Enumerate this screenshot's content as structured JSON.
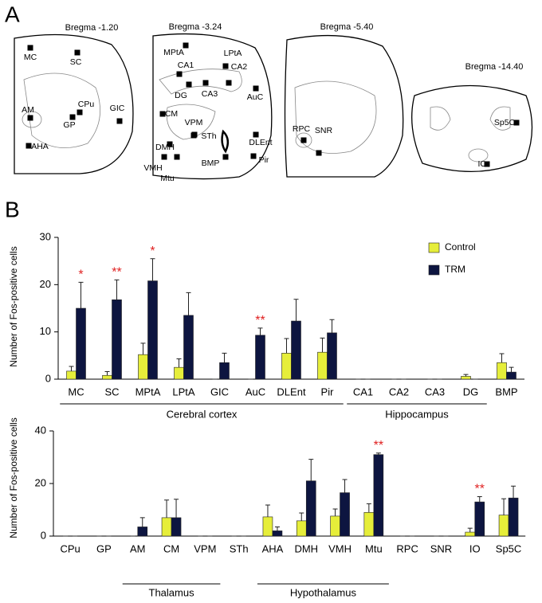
{
  "panel_labels": [
    "A",
    "B"
  ],
  "atlas": [
    {
      "title": "Bregma -1.20",
      "regions": [
        "MC",
        "SC",
        "AM",
        "CPu",
        "GP",
        "GIC",
        "AHA"
      ]
    },
    {
      "title": "Bregma -3.24",
      "regions": [
        "MPtA",
        "LPtA",
        "CA1",
        "CA2",
        "DG",
        "CA3",
        "AuC",
        "CM",
        "VPM",
        "STh",
        "DMH",
        "DLEnt",
        "VMH",
        "BMP",
        "Pir",
        "Mtu"
      ]
    },
    {
      "title": "Bregma -5.40",
      "regions": [
        "RPC",
        "SNR"
      ]
    },
    {
      "title": "Bregma -14.40",
      "regions": [
        "Sp5C",
        "IO"
      ]
    }
  ],
  "chart_data": [
    {
      "type": "bar",
      "ylabel": "Number of Fos-positive cells",
      "categories": [
        "MC",
        "SC",
        "MPtA",
        "LPtA",
        "GIC",
        "AuC",
        "DLEnt",
        "Pir",
        "CA1",
        "CA2",
        "CA3",
        "DG",
        "BMP"
      ],
      "series": [
        {
          "name": "Control",
          "color": "#e6ee3a",
          "values": [
            1.7,
            0.8,
            5.2,
            2.5,
            0,
            0,
            5.5,
            5.7,
            0,
            0,
            0,
            0.6,
            3.5
          ],
          "errors": [
            1.0,
            0.8,
            2.4,
            1.8,
            0,
            0,
            3.1,
            3.0,
            0,
            0,
            0,
            0.4,
            1.9
          ]
        },
        {
          "name": "TRM",
          "color": "#0d1540",
          "values": [
            15,
            16.8,
            20.8,
            13.5,
            3.5,
            9.3,
            12.3,
            9.8,
            0,
            0,
            0,
            0,
            1.5
          ],
          "errors": [
            5.5,
            4.2,
            4.7,
            4.8,
            2.0,
            1.5,
            4.6,
            2.8,
            0,
            0,
            0,
            0,
            1.0
          ]
        }
      ],
      "annotations": [
        {
          "category": "MC",
          "text": "*"
        },
        {
          "category": "SC",
          "text": "**"
        },
        {
          "category": "MPtA",
          "text": "*"
        },
        {
          "category": "AuC",
          "text": "**"
        }
      ],
      "groups": [
        {
          "label": "Cerebral cortex",
          "from": "MC",
          "to": "Pir"
        },
        {
          "label": "Hippocampus",
          "from": "CA1",
          "to": "DG"
        }
      ],
      "ylim": [
        0,
        30
      ],
      "yticks": [
        0,
        10,
        20,
        30
      ],
      "legend": "top-right"
    },
    {
      "type": "bar",
      "ylabel": "Number of Fos-positive cells",
      "categories": [
        "CPu",
        "GP",
        "AM",
        "CM",
        "VPM",
        "STh",
        "AHA",
        "DMH",
        "VMH",
        "Mtu",
        "RPC",
        "SNR",
        "IO",
        "Sp5C"
      ],
      "series": [
        {
          "color": "#e6ee3a",
          "values": [
            0,
            0,
            0,
            7,
            0,
            0,
            7.3,
            5.8,
            7.6,
            9,
            0,
            0,
            1.5,
            8
          ],
          "errors": [
            0,
            0,
            0,
            6.7,
            0,
            0,
            4.5,
            3.0,
            2.7,
            3.3,
            0,
            0,
            1.5,
            6.2
          ]
        },
        {
          "color": "#0d1540",
          "values": [
            0,
            0,
            3.5,
            7,
            0,
            0,
            2,
            21,
            16.5,
            31,
            0,
            0,
            13,
            14.5
          ],
          "errors": [
            0,
            0,
            3.5,
            7,
            0,
            0,
            1.5,
            8.2,
            5,
            0.6,
            0,
            0,
            2,
            4.5
          ]
        }
      ],
      "annotations": [
        {
          "category": "Mtu",
          "text": "**"
        },
        {
          "category": "IO",
          "text": "**"
        }
      ],
      "groups": [
        {
          "label": "Thalamus",
          "from": "AM",
          "to": "VPM"
        },
        {
          "label": "Hypothalamus",
          "from": "AHA",
          "to": "Mtu"
        }
      ],
      "ylim": [
        0,
        40
      ],
      "yticks": [
        0,
        20,
        40
      ]
    }
  ]
}
